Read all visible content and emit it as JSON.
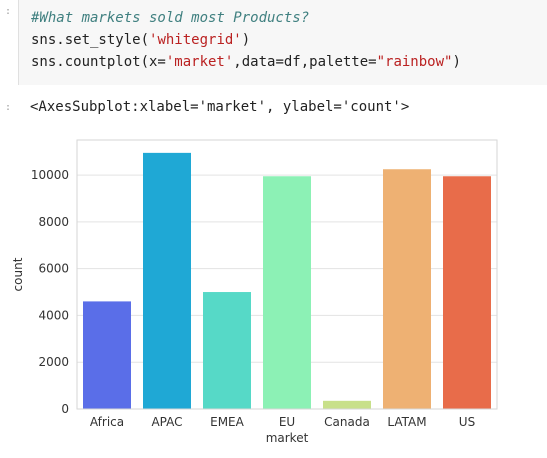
{
  "cell": {
    "prompt": ":",
    "code": {
      "comment": "#What markets sold most Products?",
      "line2_func": "sns.set_style(",
      "line2_arg": "'whitegrid'",
      "line2_end": ")",
      "line3_func": "sns.countplot(x=",
      "line3_arg1": "'market'",
      "line3_mid": ",data=df,palette=",
      "line3_arg2": "\"rainbow\"",
      "line3_end": ")"
    }
  },
  "output": {
    "prompt": ":",
    "text": "<AxesSubplot:xlabel='market', ylabel='count'>"
  },
  "chart_data": {
    "type": "bar",
    "categories": [
      "Africa",
      "APAC",
      "EMEA",
      "EU",
      "Canada",
      "LATAM",
      "US"
    ],
    "values": [
      4600,
      10950,
      5000,
      9950,
      350,
      10250,
      9950
    ],
    "colors": [
      "#5a6ee8",
      "#1fa8d5",
      "#56d9c7",
      "#8cf1b5",
      "#c8e08a",
      "#eeb173",
      "#e86c4a"
    ],
    "xlabel": "market",
    "ylabel": "count",
    "ylim": [
      0,
      11500
    ],
    "yticks": [
      0,
      2000,
      4000,
      6000,
      8000,
      10000
    ],
    "grid": true,
    "style": "whitegrid"
  }
}
